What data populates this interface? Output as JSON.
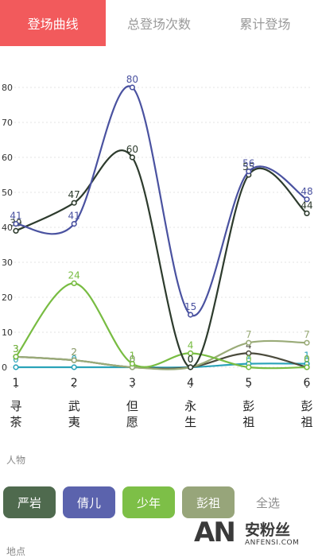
{
  "tabs": [
    {
      "label": "登场曲线",
      "active": true
    },
    {
      "label": "总登场次数",
      "active": false
    },
    {
      "label": "累计登场",
      "active": false
    }
  ],
  "chart_data": {
    "type": "line",
    "smooth": true,
    "grid": true,
    "ylim": [
      0,
      85
    ],
    "yticks": [
      0,
      10,
      20,
      30,
      40,
      50,
      60,
      70,
      80
    ],
    "x": [
      1,
      2,
      3,
      4,
      5,
      6
    ],
    "categories": [
      "寻茶",
      "武夷",
      "但愿",
      "永生",
      "彭祖",
      "彭祖"
    ],
    "series": [
      {
        "name": "倩儿",
        "color": "#4a52a0",
        "values": [
          41,
          41,
          80,
          15,
          56,
          48
        ]
      },
      {
        "name": "严岩",
        "color": "#2d3b2d",
        "values": [
          39,
          47,
          60,
          0,
          55,
          44
        ]
      },
      {
        "name": "少年",
        "color": "#78bc42",
        "values": [
          3,
          24,
          1,
          4,
          0,
          0
        ]
      },
      {
        "name": "彭祖",
        "color": "#9aab78",
        "values": [
          3,
          2,
          0,
          0,
          7,
          7
        ]
      },
      {
        "name": "",
        "color": "#4b4b3c",
        "values": [
          3,
          2,
          0,
          0,
          4,
          0
        ]
      },
      {
        "name": "",
        "color": "#2aa3b8",
        "values": [
          0,
          0,
          0,
          0,
          1,
          1
        ]
      }
    ]
  },
  "labels": {
    "people": "人物",
    "place": "地点"
  },
  "chips": [
    {
      "label": "严岩",
      "color": "#4f6a4e"
    },
    {
      "label": "倩儿",
      "color": "#5b63ad"
    },
    {
      "label": "少年",
      "color": "#7dbf47"
    },
    {
      "label": "彭祖",
      "color": "#97a57a"
    },
    {
      "label": "全选",
      "color": ""
    }
  ],
  "watermark": {
    "an": "AN",
    "cn": "安粉丝",
    "en": "ANFENSI.COM"
  }
}
